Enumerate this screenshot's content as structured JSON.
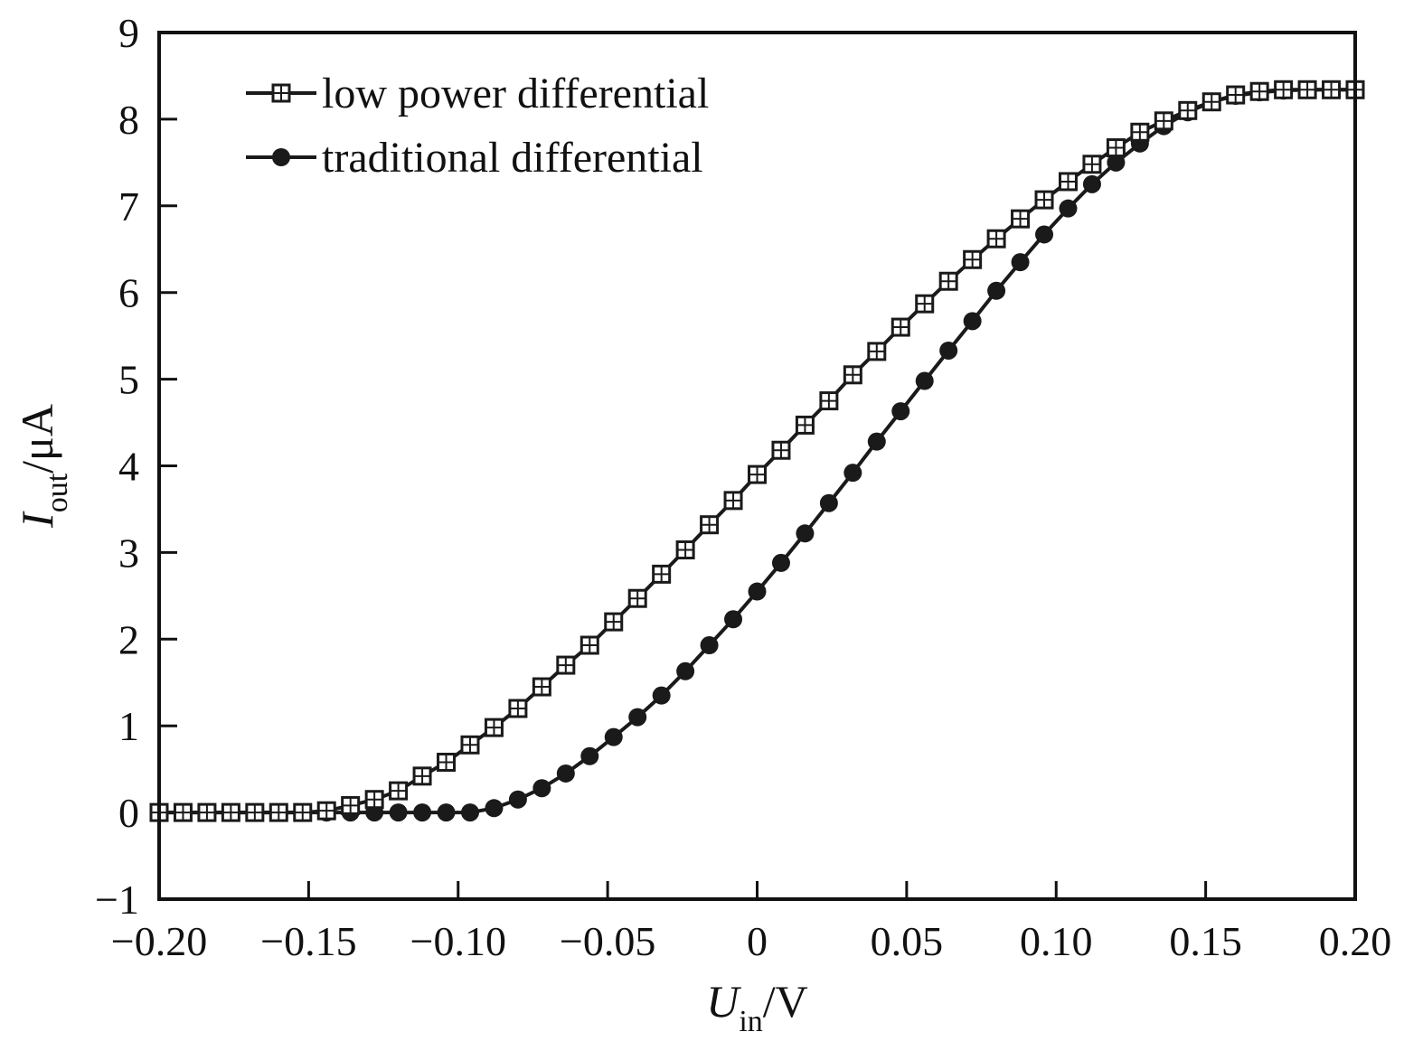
{
  "chart_data": {
    "type": "line",
    "title": "",
    "xlabel": {
      "symbol": "U",
      "subscript": "in",
      "unit": "/V"
    },
    "ylabel": {
      "symbol": "I",
      "subscript": "out",
      "unit": "/μA"
    },
    "xlim": [
      -0.2,
      0.2
    ],
    "ylim": [
      -1,
      9
    ],
    "x_ticks": [
      -0.2,
      -0.15,
      -0.1,
      -0.05,
      0,
      0.05,
      0.1,
      0.15,
      0.2
    ],
    "x_tick_labels": [
      "−0.20",
      "−0.15",
      "−0.10",
      "−0.05",
      "0",
      "0.05",
      "0.10",
      "0.15",
      "0.20"
    ],
    "y_ticks": [
      -1,
      0,
      1,
      2,
      3,
      4,
      5,
      6,
      7,
      8,
      9
    ],
    "y_tick_labels": [
      "−1",
      "0",
      "1",
      "2",
      "3",
      "4",
      "5",
      "6",
      "7",
      "8",
      "9"
    ],
    "grid": false,
    "legend_position": "top-left",
    "line_color": "#1a1a1a",
    "x": [
      -0.2,
      -0.192,
      -0.184,
      -0.176,
      -0.168,
      -0.16,
      -0.152,
      -0.144,
      -0.136,
      -0.128,
      -0.12,
      -0.112,
      -0.104,
      -0.096,
      -0.088,
      -0.08,
      -0.072,
      -0.064,
      -0.056,
      -0.048,
      -0.04,
      -0.032,
      -0.024,
      -0.016,
      -0.008,
      0,
      0.008,
      0.016,
      0.024,
      0.032,
      0.04,
      0.048,
      0.056,
      0.064,
      0.072,
      0.08,
      0.088,
      0.096,
      0.104,
      0.112,
      0.12,
      0.128,
      0.136,
      0.144,
      0.152,
      0.16,
      0.168,
      0.176,
      0.184,
      0.192,
      0.2
    ],
    "series": [
      {
        "name": "low power differential",
        "marker": "open-square",
        "values": [
          0,
          0,
          0,
          0,
          0,
          0,
          0,
          0.02,
          0.08,
          0.15,
          0.25,
          0.42,
          0.58,
          0.78,
          0.98,
          1.2,
          1.45,
          1.7,
          1.93,
          2.2,
          2.47,
          2.75,
          3.03,
          3.32,
          3.6,
          3.9,
          4.18,
          4.47,
          4.75,
          5.05,
          5.32,
          5.6,
          5.87,
          6.13,
          6.38,
          6.62,
          6.85,
          7.07,
          7.28,
          7.48,
          7.67,
          7.85,
          7.98,
          8.1,
          8.2,
          8.28,
          8.32,
          8.34,
          8.34,
          8.34,
          8.34
        ]
      },
      {
        "name": "traditional differential",
        "marker": "filled-circle",
        "values": [
          0,
          0,
          0,
          0,
          0,
          0,
          0,
          0,
          0,
          0,
          0,
          0,
          0,
          0,
          0.05,
          0.15,
          0.28,
          0.45,
          0.65,
          0.87,
          1.1,
          1.35,
          1.63,
          1.93,
          2.23,
          2.55,
          2.88,
          3.22,
          3.57,
          3.92,
          4.28,
          4.63,
          4.98,
          5.33,
          5.67,
          6.02,
          6.35,
          6.67,
          6.97,
          7.25,
          7.5,
          7.72,
          7.92,
          8.08,
          8.2,
          8.27,
          8.31,
          8.33,
          8.34,
          8.34,
          8.34
        ]
      }
    ]
  }
}
